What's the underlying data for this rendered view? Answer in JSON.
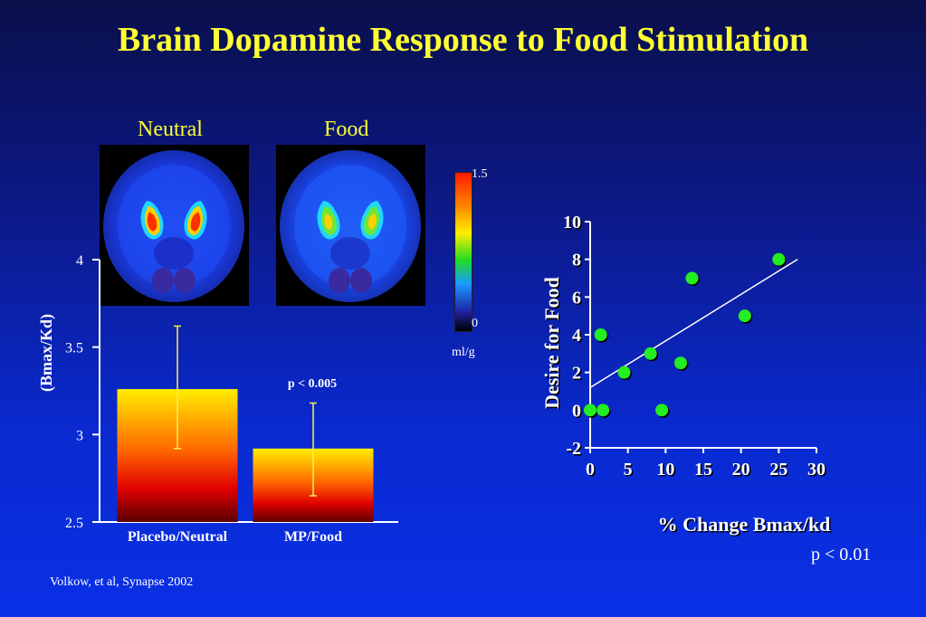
{
  "title": "Brain Dopamine Response to Food Stimulation",
  "scans": {
    "neutral_label": "Neutral",
    "food_label": "Food",
    "colorbar_max": "1.5",
    "colorbar_min": "0",
    "colorbar_unit": "ml/g"
  },
  "citation": "Volkow, et al, Synapse 2002",
  "chart_data": [
    {
      "type": "bar",
      "categories": [
        "Placebo/Neutral",
        "MP/Food"
      ],
      "values": [
        3.26,
        2.92
      ],
      "error_high": [
        3.62,
        3.18
      ],
      "error_low": [
        2.92,
        2.65
      ],
      "ylabel": "(Bmax/Kd)",
      "ylim": [
        2.5,
        4
      ],
      "yticks": [
        "2.5",
        "3",
        "3.5",
        "4"
      ],
      "annotation": "p < 0.005"
    },
    {
      "type": "scatter",
      "xlabel": "% Change Bmax/kd",
      "ylabel": "Desire for Food",
      "xlim": [
        0,
        30
      ],
      "ylim": [
        -2,
        10
      ],
      "xticks": [
        "0",
        "5",
        "10",
        "15",
        "20",
        "25",
        "30"
      ],
      "yticks": [
        "-2",
        "0",
        "2",
        "4",
        "6",
        "8",
        "10"
      ],
      "points": [
        {
          "x": 0,
          "y": 0
        },
        {
          "x": 1.7,
          "y": 0
        },
        {
          "x": 1.4,
          "y": 4
        },
        {
          "x": 4.5,
          "y": 2
        },
        {
          "x": 8,
          "y": 3
        },
        {
          "x": 9.5,
          "y": 0
        },
        {
          "x": 12,
          "y": 2.5
        },
        {
          "x": 13.5,
          "y": 7
        },
        {
          "x": 20.5,
          "y": 5
        },
        {
          "x": 25,
          "y": 8
        }
      ],
      "point_color": "#22ee22",
      "trendline": [
        {
          "x": 0,
          "y": 1.2
        },
        {
          "x": 27.5,
          "y": 8
        }
      ],
      "annotation": "p < 0.01"
    }
  ]
}
